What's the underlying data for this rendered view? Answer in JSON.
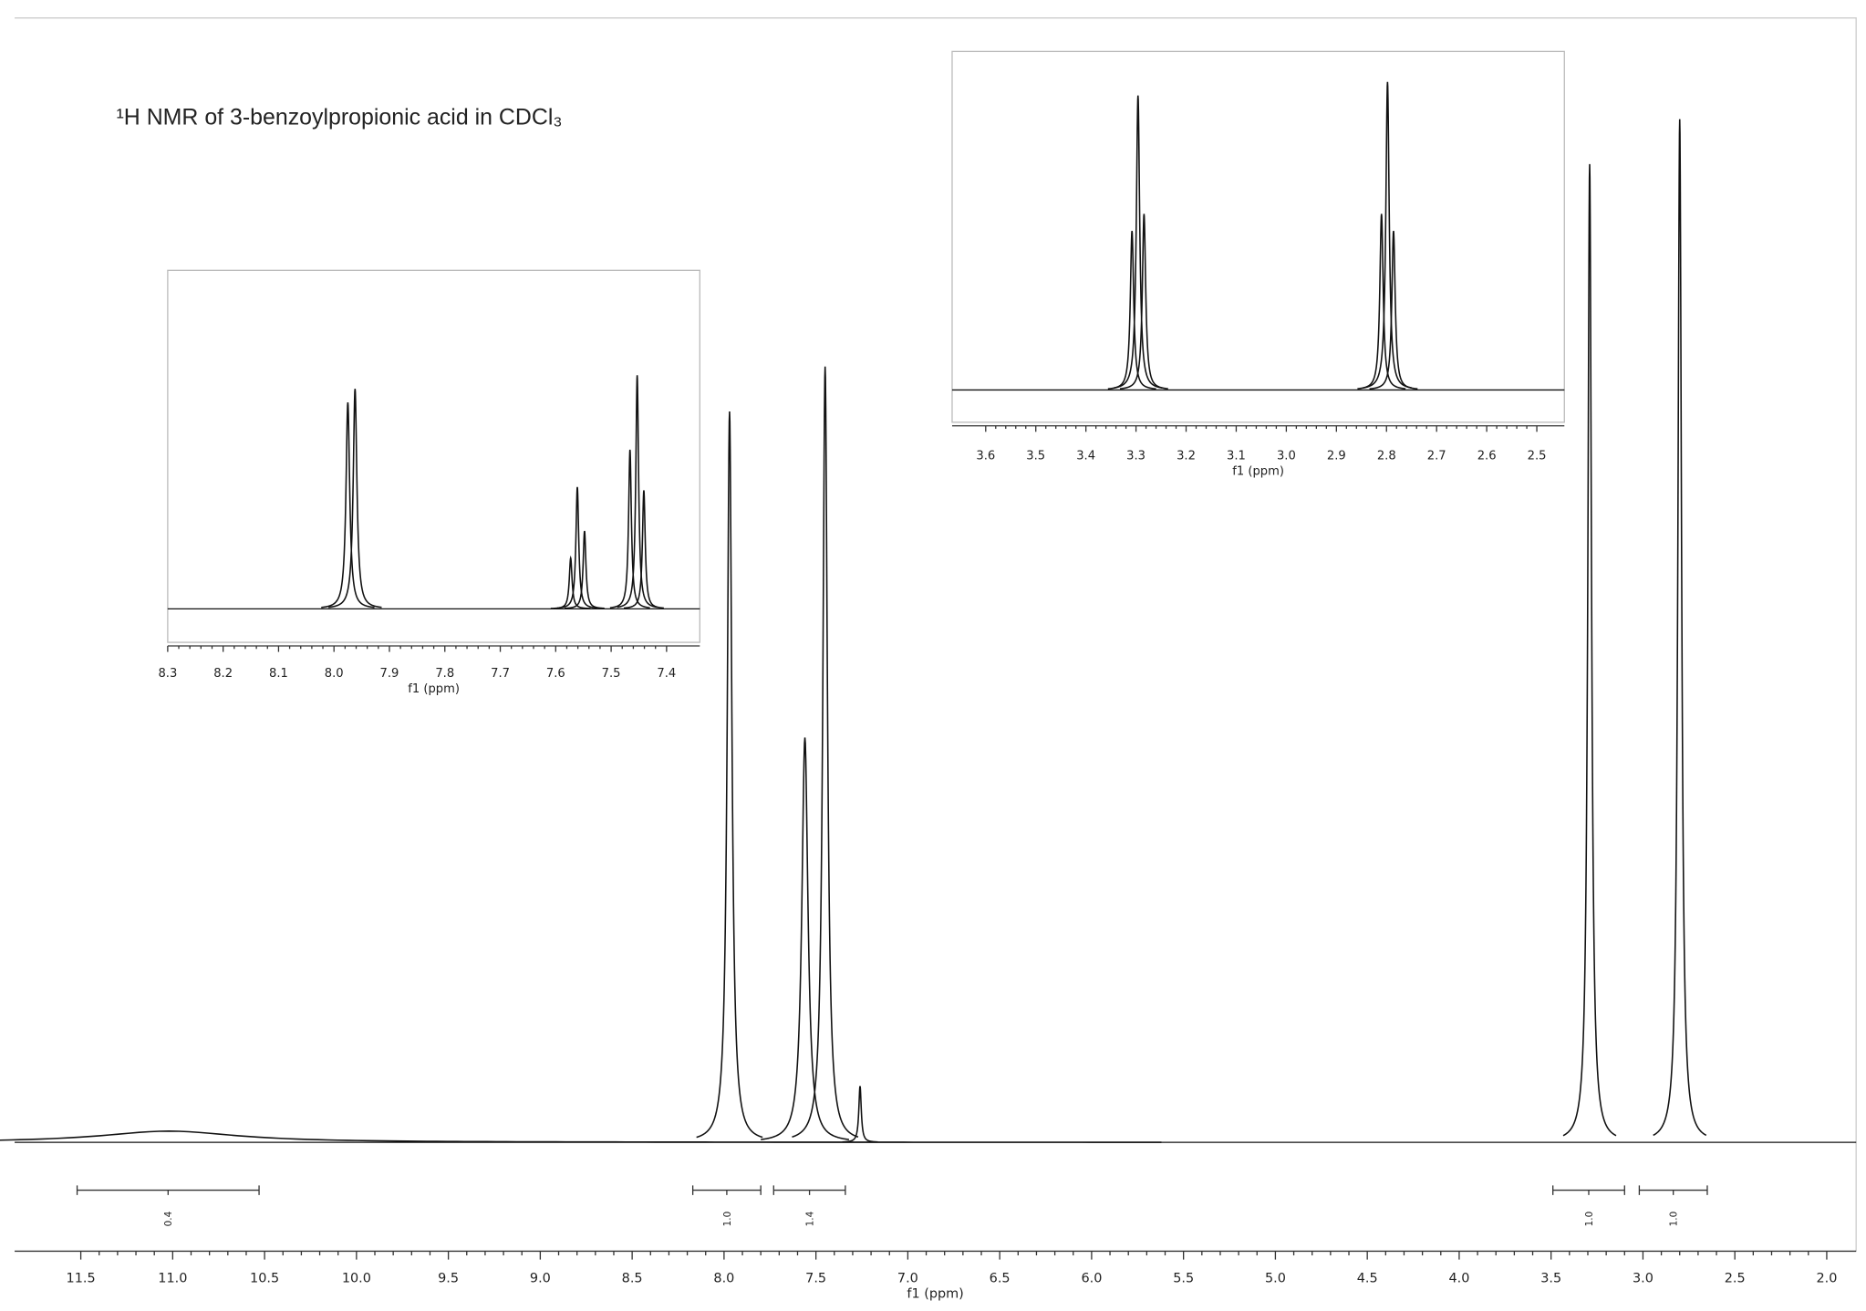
{
  "chart_data": [
    {
      "type": "spectrum",
      "title": "¹H NMR of 3-benzoylpropionic acid in CDCl₃",
      "x_label": "f1 (ppm)",
      "xlim": [
        11.86,
        1.84
      ],
      "ylim": [
        0,
        100
      ],
      "xticks": [
        11.5,
        {
          "value": 11,
          "label": "11.0"
        },
        10.5,
        {
          "value": 10,
          "label": "10.0"
        },
        9.5,
        {
          "value": 9,
          "label": "9.0"
        },
        8.5,
        {
          "value": 8,
          "label": "8.0"
        },
        7.5,
        {
          "value": 7,
          "label": "7.0"
        },
        6.5,
        {
          "value": 6,
          "label": "6.0"
        },
        5.5,
        {
          "value": 5,
          "label": "5.0"
        },
        4.5,
        {
          "value": 4,
          "label": "4.0"
        },
        3.5,
        {
          "value": 3,
          "label": "3.0"
        },
        2.5,
        {
          "value": 2,
          "label": "2.0"
        }
      ],
      "peaks": {
        "x": [
          11.02,
          7.97,
          7.56,
          7.45,
          7.26,
          3.29,
          2.8
        ],
        "values": [
          1,
          65,
          36,
          69,
          5,
          87,
          91
        ],
        "widths": [
          0.45,
          0.015,
          0.02,
          0.015,
          0.008,
          0.012,
          0.012
        ]
      },
      "integrals": {
        "ranges": [
          [
            11.52,
            10.53
          ],
          [
            8.17,
            7.8
          ],
          [
            7.73,
            7.34
          ],
          [
            3.49,
            3.1
          ],
          [
            3.02,
            2.65
          ]
        ],
        "values": [
          0.4,
          {
            "value": 1,
            "label": "1.0"
          },
          1.4,
          {
            "value": 1,
            "label": "1.0"
          },
          {
            "value": 1,
            "label": "1.0"
          }
        ]
      }
    },
    {
      "type": "spectrum",
      "x_label": "f1 (ppm)",
      "xlim": [
        8.3,
        7.34
      ],
      "ylim": [
        0,
        100
      ],
      "xticks": [
        8.3,
        8.2,
        8.1,
        {
          "value": 8,
          "label": "8.0"
        },
        7.9,
        7.8,
        7.7,
        7.6,
        7.5,
        7.4
      ],
      "peaks": {
        "x": [
          7.975,
          7.962,
          7.573,
          7.561,
          7.548,
          7.466,
          7.453,
          7.441
        ],
        "values": [
          61,
          65,
          15,
          36,
          23,
          47,
          69,
          35
        ],
        "widths": [
          0.004,
          0.004,
          0.003,
          0.003,
          0.003,
          0.003,
          0.003,
          0.003
        ]
      }
    },
    {
      "type": "spectrum",
      "x_label": "f1 (ppm)",
      "xlim": [
        3.667,
        2.445
      ],
      "ylim": [
        0,
        100
      ],
      "xticks": [
        3.6,
        3.5,
        3.4,
        3.3,
        3.2,
        3.1,
        {
          "value": 3,
          "label": "3.0"
        },
        2.9,
        2.8,
        2.7,
        2.6,
        2.5
      ],
      "peaks": {
        "x": [
          3.308,
          3.296,
          3.284,
          2.81,
          2.798,
          2.786
        ],
        "values": [
          47,
          87,
          52,
          52,
          91,
          47
        ],
        "widths": [
          0.004,
          0.004,
          0.004,
          0.004,
          0.004,
          0.004
        ]
      }
    }
  ]
}
